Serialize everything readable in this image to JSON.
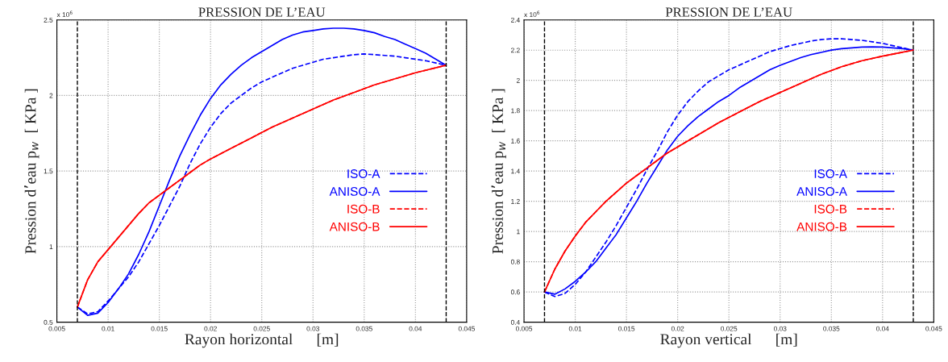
{
  "chart_data": [
    {
      "type": "line",
      "title": "PRESSION DE L’EAU",
      "xlabel": "Rayon horizontal      [m]",
      "ylabel": "Pression d’eau p$_{w}$  [ KPa ]",
      "annotations": [
        "x 10$^{6}$"
      ],
      "xlim": [
        0.005,
        0.045
      ],
      "xticks": [
        0.005,
        0.01,
        0.015,
        0.02,
        0.025,
        0.03,
        0.035,
        0.04,
        0.045
      ],
      "ylim": [
        0.5,
        2.5
      ],
      "yticks": [
        0.5,
        1,
        1.5,
        2,
        2.5
      ],
      "grid": true,
      "legend": "right",
      "ref_lines": [
        {
          "axis": "x",
          "value": 0.007,
          "color": "#000000",
          "line_style": "dashed"
        },
        {
          "axis": "x",
          "value": 0.043,
          "color": "#000000",
          "line_style": "dashed"
        }
      ],
      "series": [
        {
          "name": "ISO-A",
          "color": "#0000ff",
          "line_style": "dashed",
          "x": [
            0.007,
            0.008,
            0.009,
            0.01,
            0.011,
            0.012,
            0.013,
            0.014,
            0.015,
            0.016,
            0.017,
            0.018,
            0.019,
            0.02,
            0.021,
            0.022,
            0.023,
            0.024,
            0.025,
            0.026,
            0.027,
            0.028,
            0.029,
            0.03,
            0.031,
            0.032,
            0.033,
            0.034,
            0.035,
            0.036,
            0.037,
            0.038,
            0.039,
            0.04,
            0.041,
            0.042,
            0.043
          ],
          "values": [
            0.6,
            0.555,
            0.57,
            0.64,
            0.72,
            0.8,
            0.9,
            1.02,
            1.14,
            1.27,
            1.4,
            1.55,
            1.68,
            1.79,
            1.88,
            1.95,
            2.0,
            2.05,
            2.09,
            2.12,
            2.15,
            2.18,
            2.2,
            2.22,
            2.24,
            2.25,
            2.26,
            2.27,
            2.275,
            2.27,
            2.265,
            2.26,
            2.25,
            2.24,
            2.23,
            2.215,
            2.2
          ]
        },
        {
          "name": "ANISO-A",
          "color": "#0000ff",
          "line_style": "solid",
          "x": [
            0.007,
            0.008,
            0.009,
            0.01,
            0.011,
            0.012,
            0.013,
            0.014,
            0.015,
            0.016,
            0.017,
            0.018,
            0.019,
            0.02,
            0.021,
            0.022,
            0.023,
            0.024,
            0.025,
            0.026,
            0.027,
            0.028,
            0.029,
            0.03,
            0.031,
            0.032,
            0.033,
            0.034,
            0.035,
            0.036,
            0.037,
            0.038,
            0.039,
            0.04,
            0.041,
            0.042,
            0.043
          ],
          "values": [
            0.6,
            0.545,
            0.56,
            0.63,
            0.72,
            0.82,
            0.95,
            1.1,
            1.27,
            1.44,
            1.6,
            1.74,
            1.87,
            1.98,
            2.07,
            2.14,
            2.2,
            2.25,
            2.29,
            2.33,
            2.37,
            2.4,
            2.42,
            2.43,
            2.44,
            2.445,
            2.445,
            2.44,
            2.43,
            2.415,
            2.39,
            2.37,
            2.34,
            2.31,
            2.28,
            2.24,
            2.2
          ]
        },
        {
          "name": "ISO-B",
          "color": "#ff0000",
          "line_style": "dashed",
          "x": [
            0.007,
            0.008,
            0.009,
            0.01,
            0.011,
            0.012,
            0.013,
            0.014,
            0.015,
            0.016,
            0.017,
            0.018,
            0.019,
            0.02,
            0.022,
            0.024,
            0.026,
            0.028,
            0.03,
            0.032,
            0.034,
            0.036,
            0.038,
            0.04,
            0.043
          ],
          "values": [
            0.6,
            0.78,
            0.9,
            0.98,
            1.06,
            1.14,
            1.22,
            1.29,
            1.34,
            1.39,
            1.44,
            1.49,
            1.54,
            1.58,
            1.65,
            1.72,
            1.79,
            1.85,
            1.91,
            1.97,
            2.02,
            2.07,
            2.11,
            2.15,
            2.2
          ]
        },
        {
          "name": "ANISO-B",
          "color": "#ff0000",
          "line_style": "solid",
          "x": [
            0.007,
            0.008,
            0.009,
            0.01,
            0.011,
            0.012,
            0.013,
            0.014,
            0.015,
            0.016,
            0.017,
            0.018,
            0.019,
            0.02,
            0.022,
            0.024,
            0.026,
            0.028,
            0.03,
            0.032,
            0.034,
            0.036,
            0.038,
            0.04,
            0.043
          ],
          "values": [
            0.6,
            0.78,
            0.9,
            0.98,
            1.06,
            1.14,
            1.22,
            1.29,
            1.34,
            1.39,
            1.44,
            1.49,
            1.54,
            1.58,
            1.65,
            1.72,
            1.79,
            1.85,
            1.91,
            1.97,
            2.02,
            2.07,
            2.11,
            2.15,
            2.2
          ]
        }
      ]
    },
    {
      "type": "line",
      "title": "PRESSION DE L’EAU",
      "xlabel": "Rayon vertical      [m]",
      "ylabel": "Pression d’eau p$_{w}$  [ KPa ]",
      "annotations": [
        "x 10$^{6}$"
      ],
      "xlim": [
        0.005,
        0.045
      ],
      "xticks": [
        0.005,
        0.01,
        0.015,
        0.02,
        0.025,
        0.03,
        0.035,
        0.04,
        0.045
      ],
      "ylim": [
        0.4,
        2.4
      ],
      "yticks": [
        0.4,
        0.6,
        0.8,
        1,
        1.2,
        1.4,
        1.6,
        1.8,
        2,
        2.2,
        2.4
      ],
      "grid": true,
      "legend": "right",
      "ref_lines": [
        {
          "axis": "x",
          "value": 0.007,
          "color": "#000000",
          "line_style": "dashed"
        },
        {
          "axis": "x",
          "value": 0.043,
          "color": "#000000",
          "line_style": "dashed"
        }
      ],
      "series": [
        {
          "name": "ISO-A",
          "color": "#0000ff",
          "line_style": "dashed",
          "x": [
            0.007,
            0.008,
            0.009,
            0.01,
            0.011,
            0.012,
            0.013,
            0.014,
            0.015,
            0.016,
            0.017,
            0.018,
            0.019,
            0.02,
            0.021,
            0.022,
            0.023,
            0.024,
            0.025,
            0.026,
            0.027,
            0.028,
            0.029,
            0.03,
            0.031,
            0.032,
            0.033,
            0.034,
            0.035,
            0.036,
            0.037,
            0.038,
            0.039,
            0.04,
            0.041,
            0.042,
            0.043
          ],
          "values": [
            0.6,
            0.57,
            0.59,
            0.65,
            0.73,
            0.83,
            0.93,
            1.04,
            1.16,
            1.28,
            1.41,
            1.53,
            1.66,
            1.77,
            1.86,
            1.93,
            1.99,
            2.03,
            2.07,
            2.1,
            2.13,
            2.16,
            2.19,
            2.21,
            2.23,
            2.245,
            2.26,
            2.27,
            2.275,
            2.275,
            2.27,
            2.265,
            2.255,
            2.245,
            2.23,
            2.215,
            2.2
          ]
        },
        {
          "name": "ANISO-A",
          "color": "#0000ff",
          "line_style": "solid",
          "x": [
            0.007,
            0.008,
            0.009,
            0.01,
            0.011,
            0.012,
            0.013,
            0.014,
            0.015,
            0.016,
            0.017,
            0.018,
            0.019,
            0.02,
            0.021,
            0.022,
            0.023,
            0.024,
            0.025,
            0.026,
            0.027,
            0.028,
            0.029,
            0.03,
            0.031,
            0.032,
            0.033,
            0.034,
            0.035,
            0.036,
            0.037,
            0.038,
            0.039,
            0.04,
            0.041,
            0.042,
            0.043
          ],
          "values": [
            0.6,
            0.585,
            0.62,
            0.67,
            0.73,
            0.8,
            0.89,
            0.98,
            1.09,
            1.2,
            1.32,
            1.43,
            1.54,
            1.63,
            1.7,
            1.76,
            1.81,
            1.86,
            1.9,
            1.95,
            1.99,
            2.03,
            2.07,
            2.1,
            2.125,
            2.15,
            2.17,
            2.185,
            2.2,
            2.21,
            2.215,
            2.22,
            2.222,
            2.22,
            2.215,
            2.21,
            2.2
          ]
        },
        {
          "name": "ISO-B",
          "color": "#ff0000",
          "line_style": "dashed",
          "x": [
            0.007,
            0.008,
            0.009,
            0.01,
            0.011,
            0.012,
            0.013,
            0.014,
            0.015,
            0.016,
            0.017,
            0.018,
            0.019,
            0.02,
            0.022,
            0.024,
            0.026,
            0.028,
            0.03,
            0.032,
            0.034,
            0.036,
            0.038,
            0.04,
            0.043
          ],
          "values": [
            0.6,
            0.75,
            0.87,
            0.97,
            1.06,
            1.13,
            1.2,
            1.26,
            1.32,
            1.37,
            1.42,
            1.47,
            1.52,
            1.56,
            1.64,
            1.72,
            1.79,
            1.86,
            1.92,
            1.98,
            2.04,
            2.09,
            2.13,
            2.16,
            2.2
          ]
        },
        {
          "name": "ANISO-B",
          "color": "#ff0000",
          "line_style": "solid",
          "x": [
            0.007,
            0.008,
            0.009,
            0.01,
            0.011,
            0.012,
            0.013,
            0.014,
            0.015,
            0.016,
            0.017,
            0.018,
            0.019,
            0.02,
            0.022,
            0.024,
            0.026,
            0.028,
            0.03,
            0.032,
            0.034,
            0.036,
            0.038,
            0.04,
            0.043
          ],
          "values": [
            0.6,
            0.75,
            0.87,
            0.97,
            1.06,
            1.13,
            1.2,
            1.26,
            1.32,
            1.37,
            1.42,
            1.47,
            1.52,
            1.56,
            1.64,
            1.72,
            1.79,
            1.86,
            1.92,
            1.98,
            2.04,
            2.09,
            2.13,
            2.16,
            2.2
          ]
        }
      ]
    }
  ]
}
